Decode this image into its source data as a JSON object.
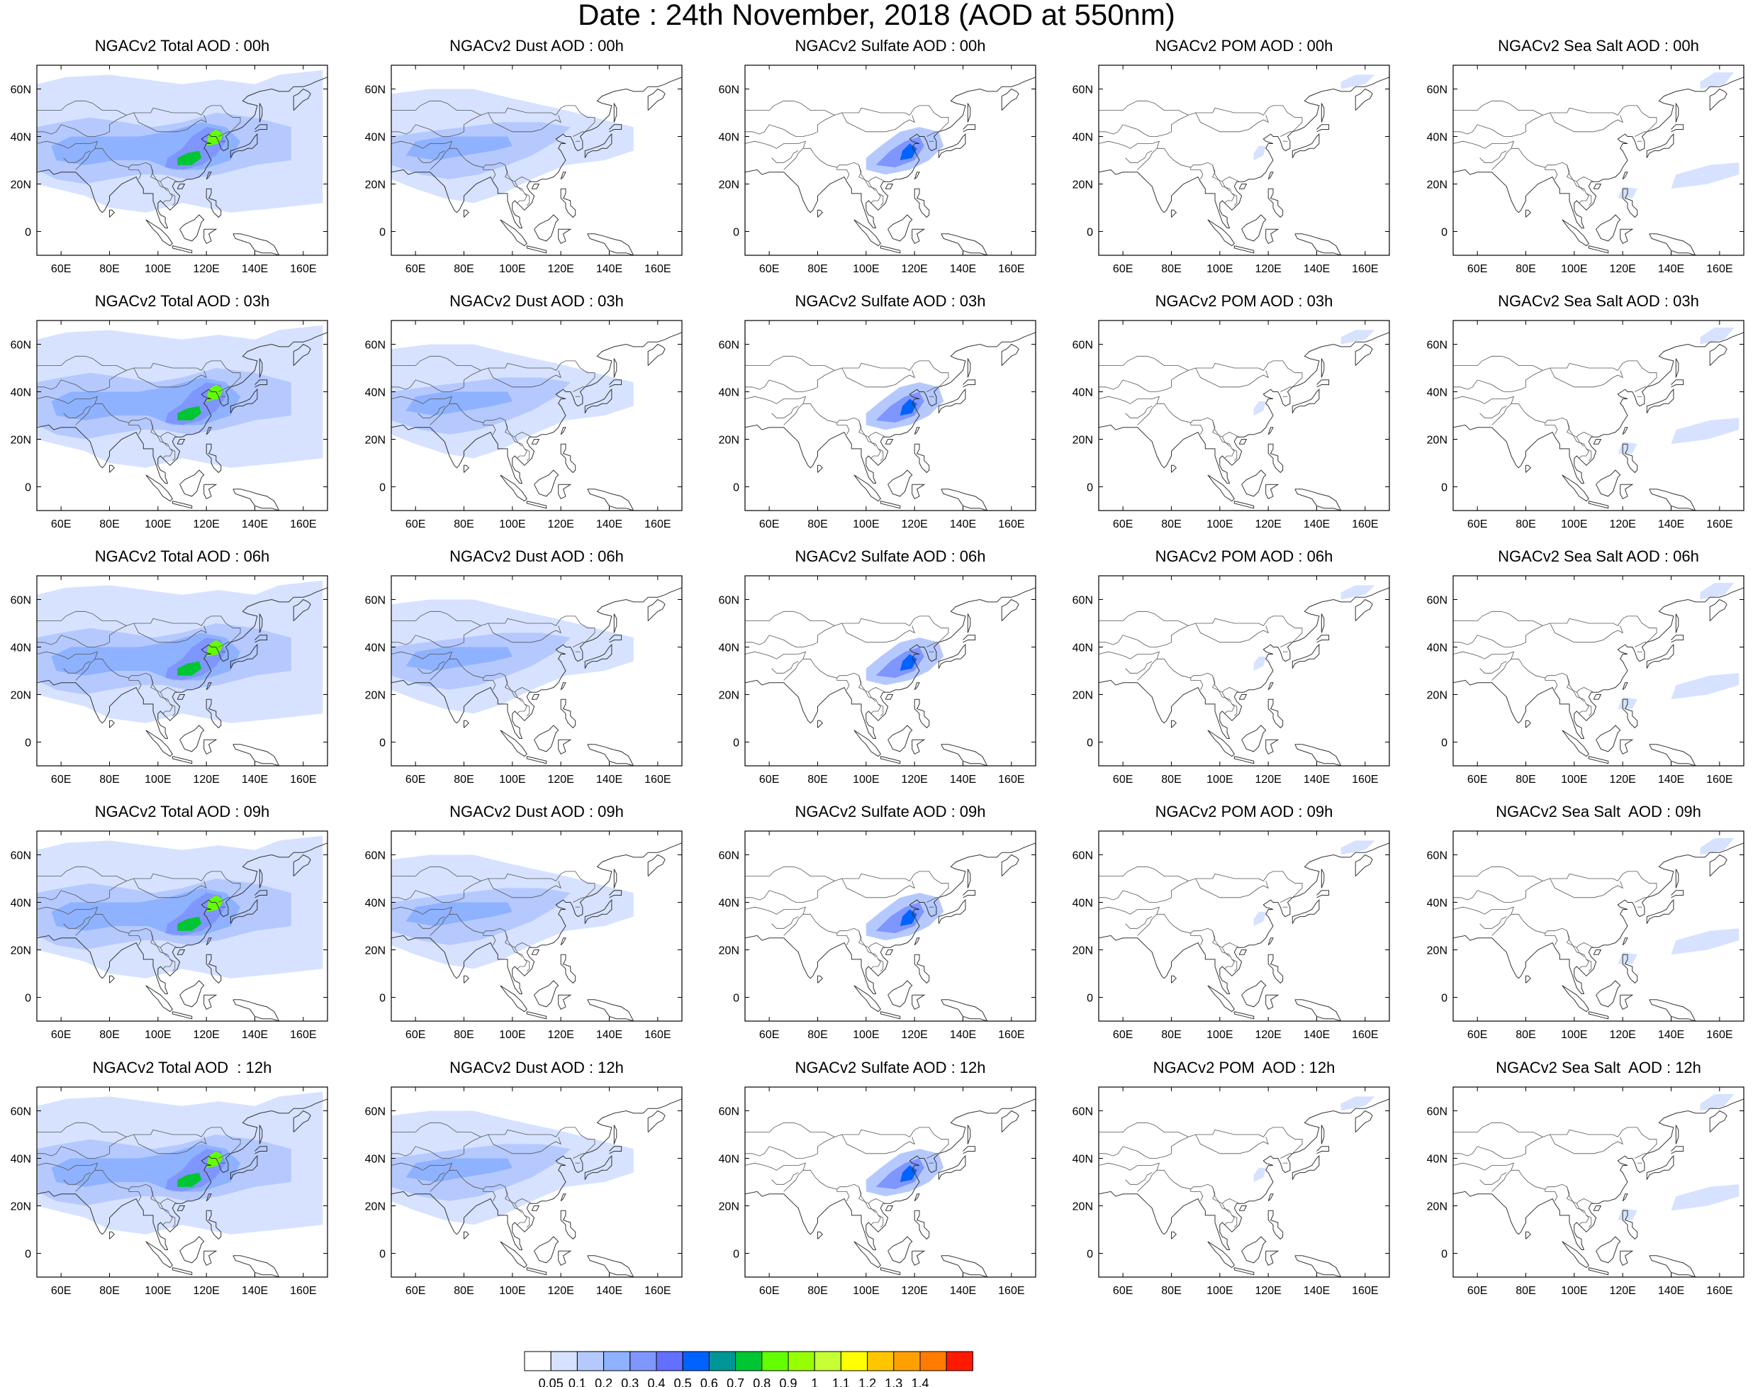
{
  "title": "Date : 24th November, 2018 (AOD at 550nm)",
  "axes": {
    "lon_ticks": [
      "60E",
      "80E",
      "100E",
      "120E",
      "140E",
      "160E"
    ],
    "lon_values": [
      60,
      80,
      100,
      120,
      140,
      160
    ],
    "lat_ticks": [
      "0",
      "20N",
      "40N",
      "60N"
    ],
    "lat_values": [
      0,
      20,
      40,
      60
    ],
    "lon_range": [
      50,
      170
    ],
    "lat_range": [
      -10,
      70
    ]
  },
  "species": [
    {
      "key": "total",
      "name": "Total",
      "level": 3
    },
    {
      "key": "dust",
      "name": "Dust",
      "level": 2
    },
    {
      "key": "sulfate",
      "name": "Sulfate",
      "level": 1
    },
    {
      "key": "pom",
      "name": "POM",
      "level": 0
    },
    {
      "key": "seasalt",
      "name": "Sea Salt",
      "level": 0
    }
  ],
  "hours": [
    "00h",
    "03h",
    "06h",
    "09h",
    "12h"
  ],
  "panel_titles": [
    [
      "NGACv2 Total AOD : 00h",
      "NGACv2 Dust AOD : 00h",
      "NGACv2 Sulfate AOD : 00h",
      "NGACv2 POM AOD : 00h",
      "NGACv2 Sea Salt AOD : 00h"
    ],
    [
      "NGACv2 Total AOD : 03h",
      "NGACv2 Dust AOD : 03h",
      "NGACv2 Sulfate AOD : 03h",
      "NGACv2 POM AOD : 03h",
      "NGACv2 Sea Salt AOD : 03h"
    ],
    [
      "NGACv2 Total AOD : 06h",
      "NGACv2 Dust AOD : 06h",
      "NGACv2 Sulfate AOD : 06h",
      "NGACv2 POM AOD : 06h",
      "NGACv2 Sea Salt AOD : 06h"
    ],
    [
      "NGACv2 Total AOD : 09h",
      "NGACv2 Dust AOD : 09h",
      "NGACv2 Sulfate AOD : 09h",
      "NGACv2 POM AOD : 09h",
      "NGACv2 Sea Salt  AOD : 09h"
    ],
    [
      "NGACv2 Total AOD  : 12h",
      "NGACv2 Dust AOD : 12h",
      "NGACv2 Sulfate AOD : 12h",
      "NGACv2 POM  AOD : 12h",
      "NGACv2 Sea Salt  AOD : 12h"
    ]
  ],
  "colorbar": {
    "labels": [
      "0.05",
      "0.1",
      "0.2",
      "0.3",
      "0.4",
      "0.5",
      "0.6",
      "0.7",
      "0.8",
      "0.9",
      "1",
      "1.1",
      "1.2",
      "1.3",
      "1.4"
    ],
    "colors": [
      "#ffffff",
      "#d6e2ff",
      "#b5c9ff",
      "#8eb2ff",
      "#7f96ff",
      "#6370ff",
      "#0063ff",
      "#009696",
      "#00c633",
      "#63ff00",
      "#96ff00",
      "#c6ff33",
      "#ffff00",
      "#ffc600",
      "#ffa000",
      "#ff7c00",
      "#ff1900"
    ]
  }
}
